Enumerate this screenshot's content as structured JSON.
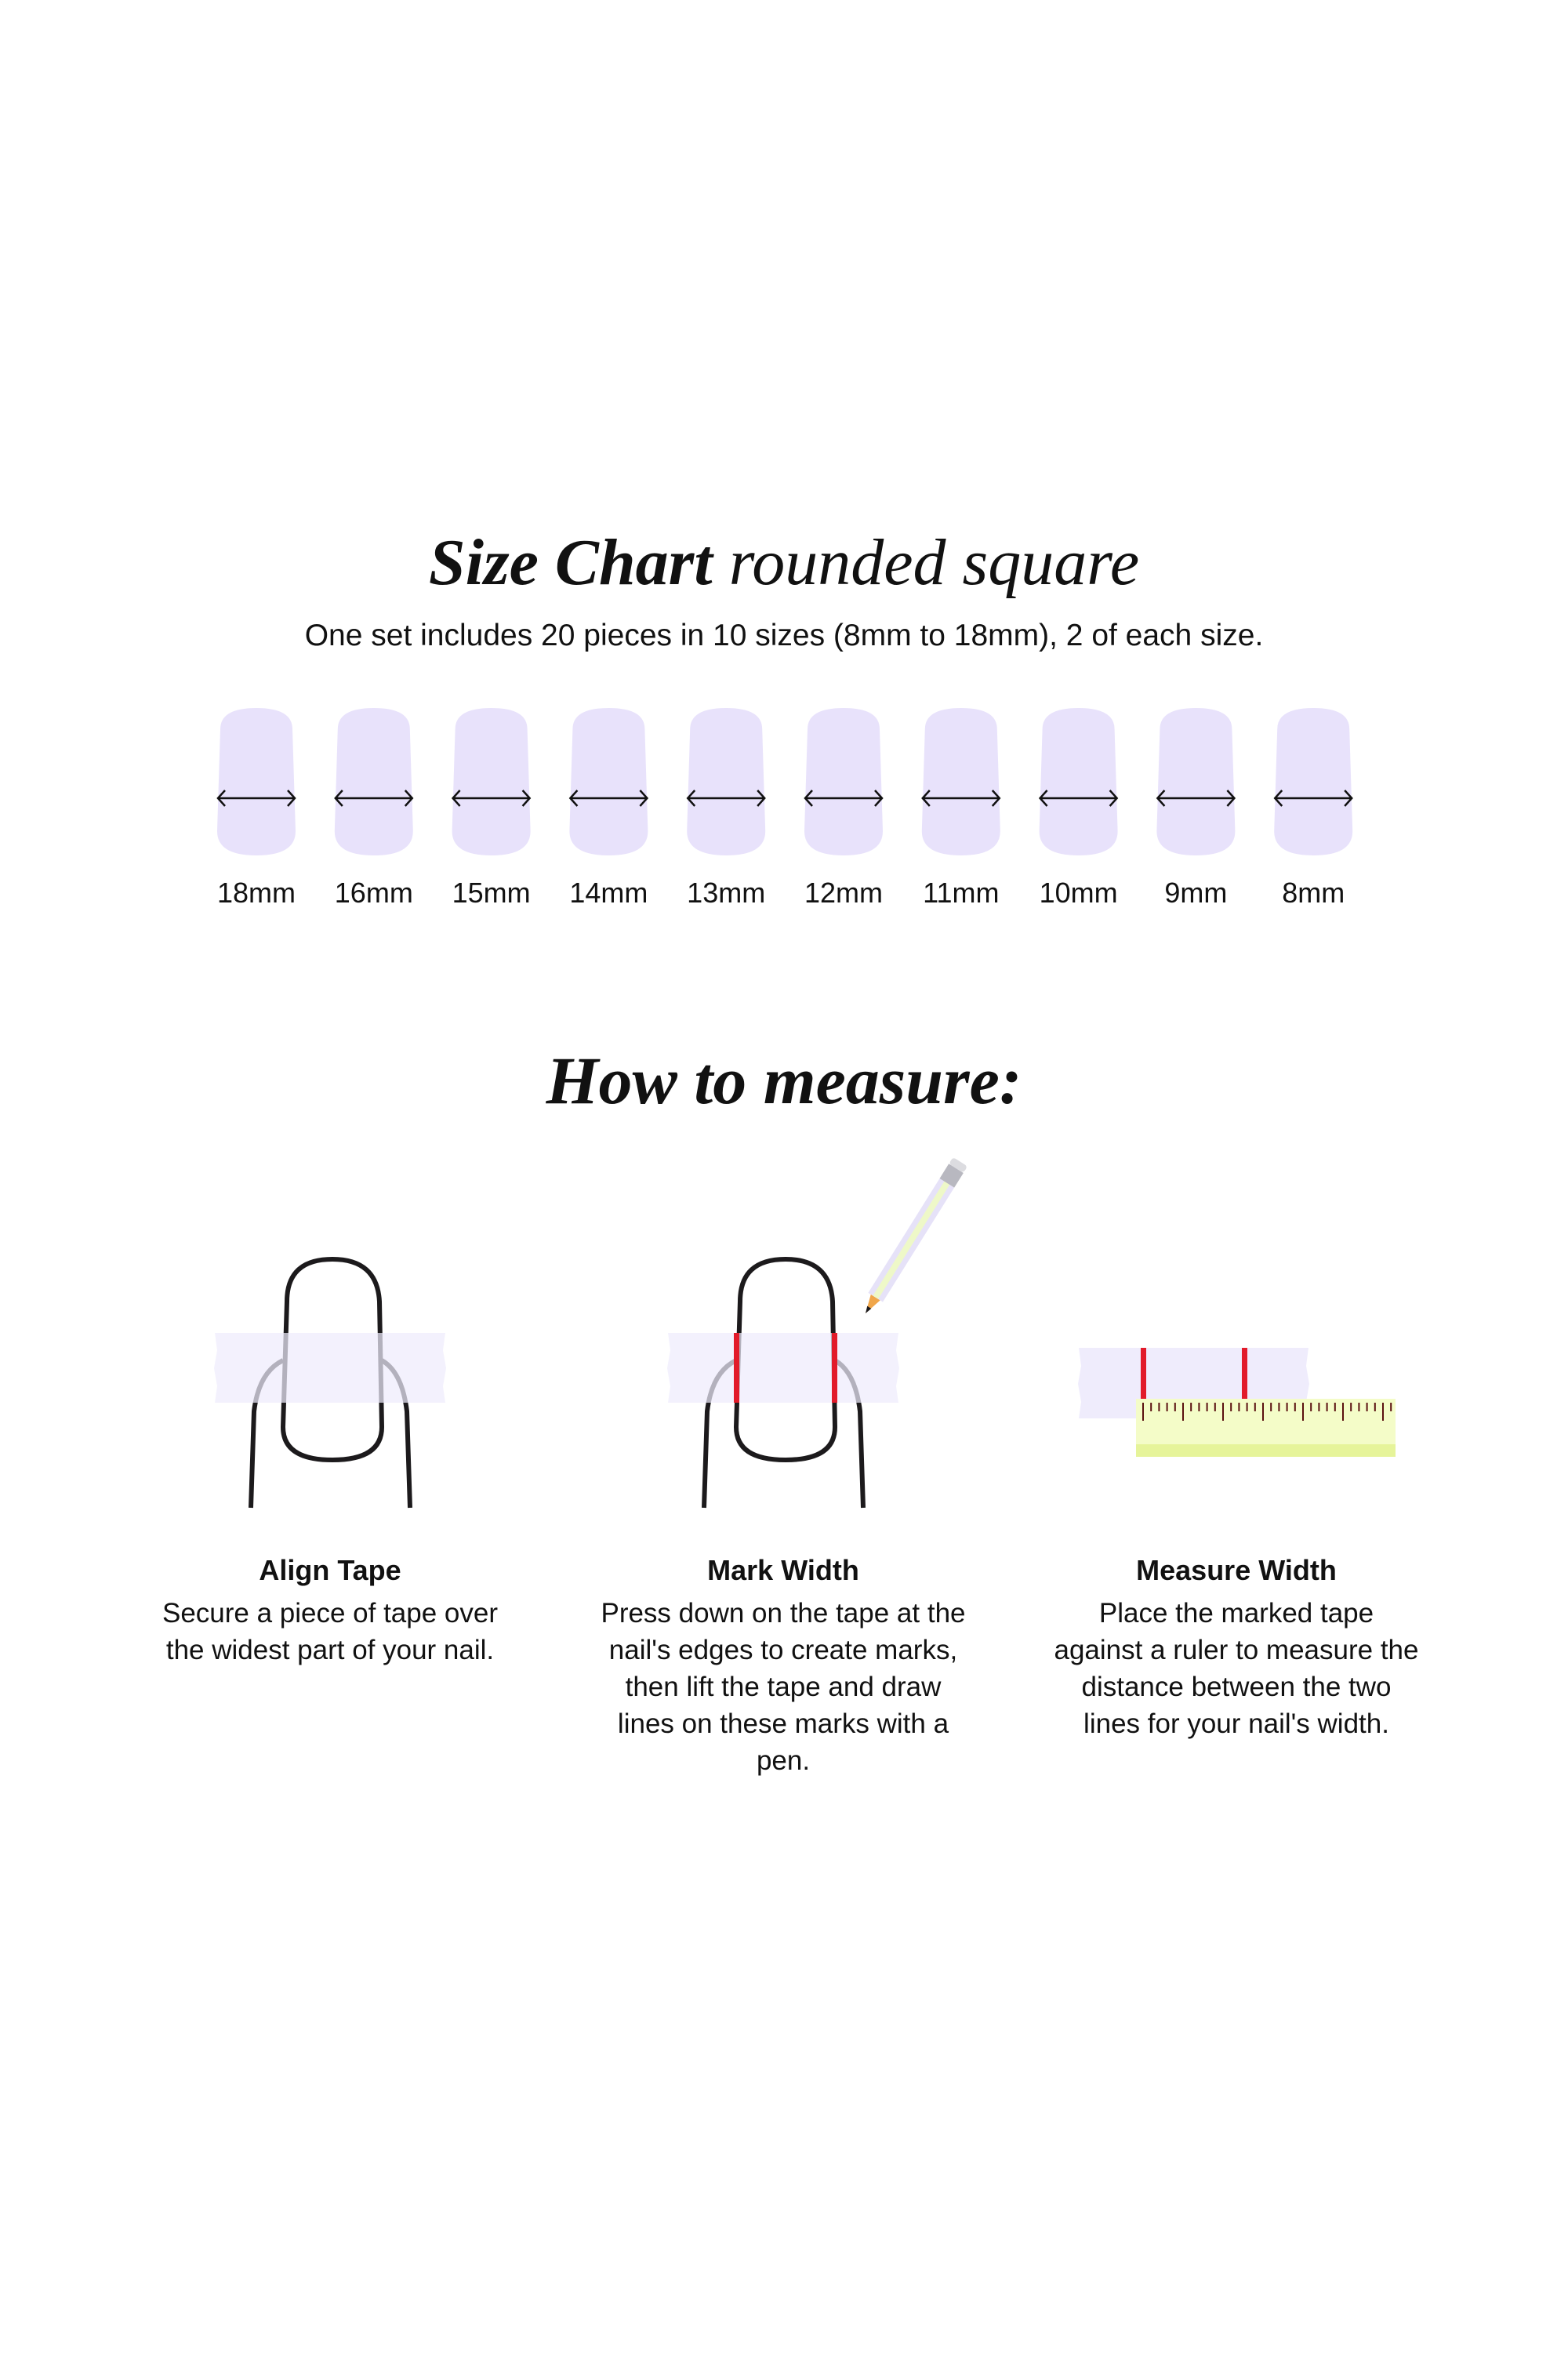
{
  "header": {
    "title_bold": "Size Chart",
    "title_italic": "rounded square",
    "subtitle": "One set includes 20 pieces in 10 sizes (8mm to 18mm), 2 of each size."
  },
  "sizes": [
    "18mm",
    "16mm",
    "15mm",
    "14mm",
    "13mm",
    "12mm",
    "11mm",
    "10mm",
    "9mm",
    "8mm"
  ],
  "howto": {
    "title": "How to measure:",
    "steps": [
      {
        "title": "Align Tape",
        "text": "Secure a piece of tape over the widest part of your nail."
      },
      {
        "title": "Mark Width",
        "text": "Press down on the tape at the nail's edges to create marks, then lift the tape and draw lines on these marks with a pen."
      },
      {
        "title": "Measure Width",
        "text": "Place the marked tape against a ruler to measure the distance between the two lines for your nail's width."
      }
    ]
  },
  "colors": {
    "nail_fill": "#e8e2fb",
    "tape": "#efecfc",
    "outline": "#1c1a1c",
    "mark_red": "#e21b2a",
    "ruler": "#f4fcc8",
    "ruler_band": "#e6f49a",
    "tick": "#5a1010"
  },
  "icons": [
    "double-arrow-icon",
    "pencil-icon",
    "ruler-icon"
  ]
}
